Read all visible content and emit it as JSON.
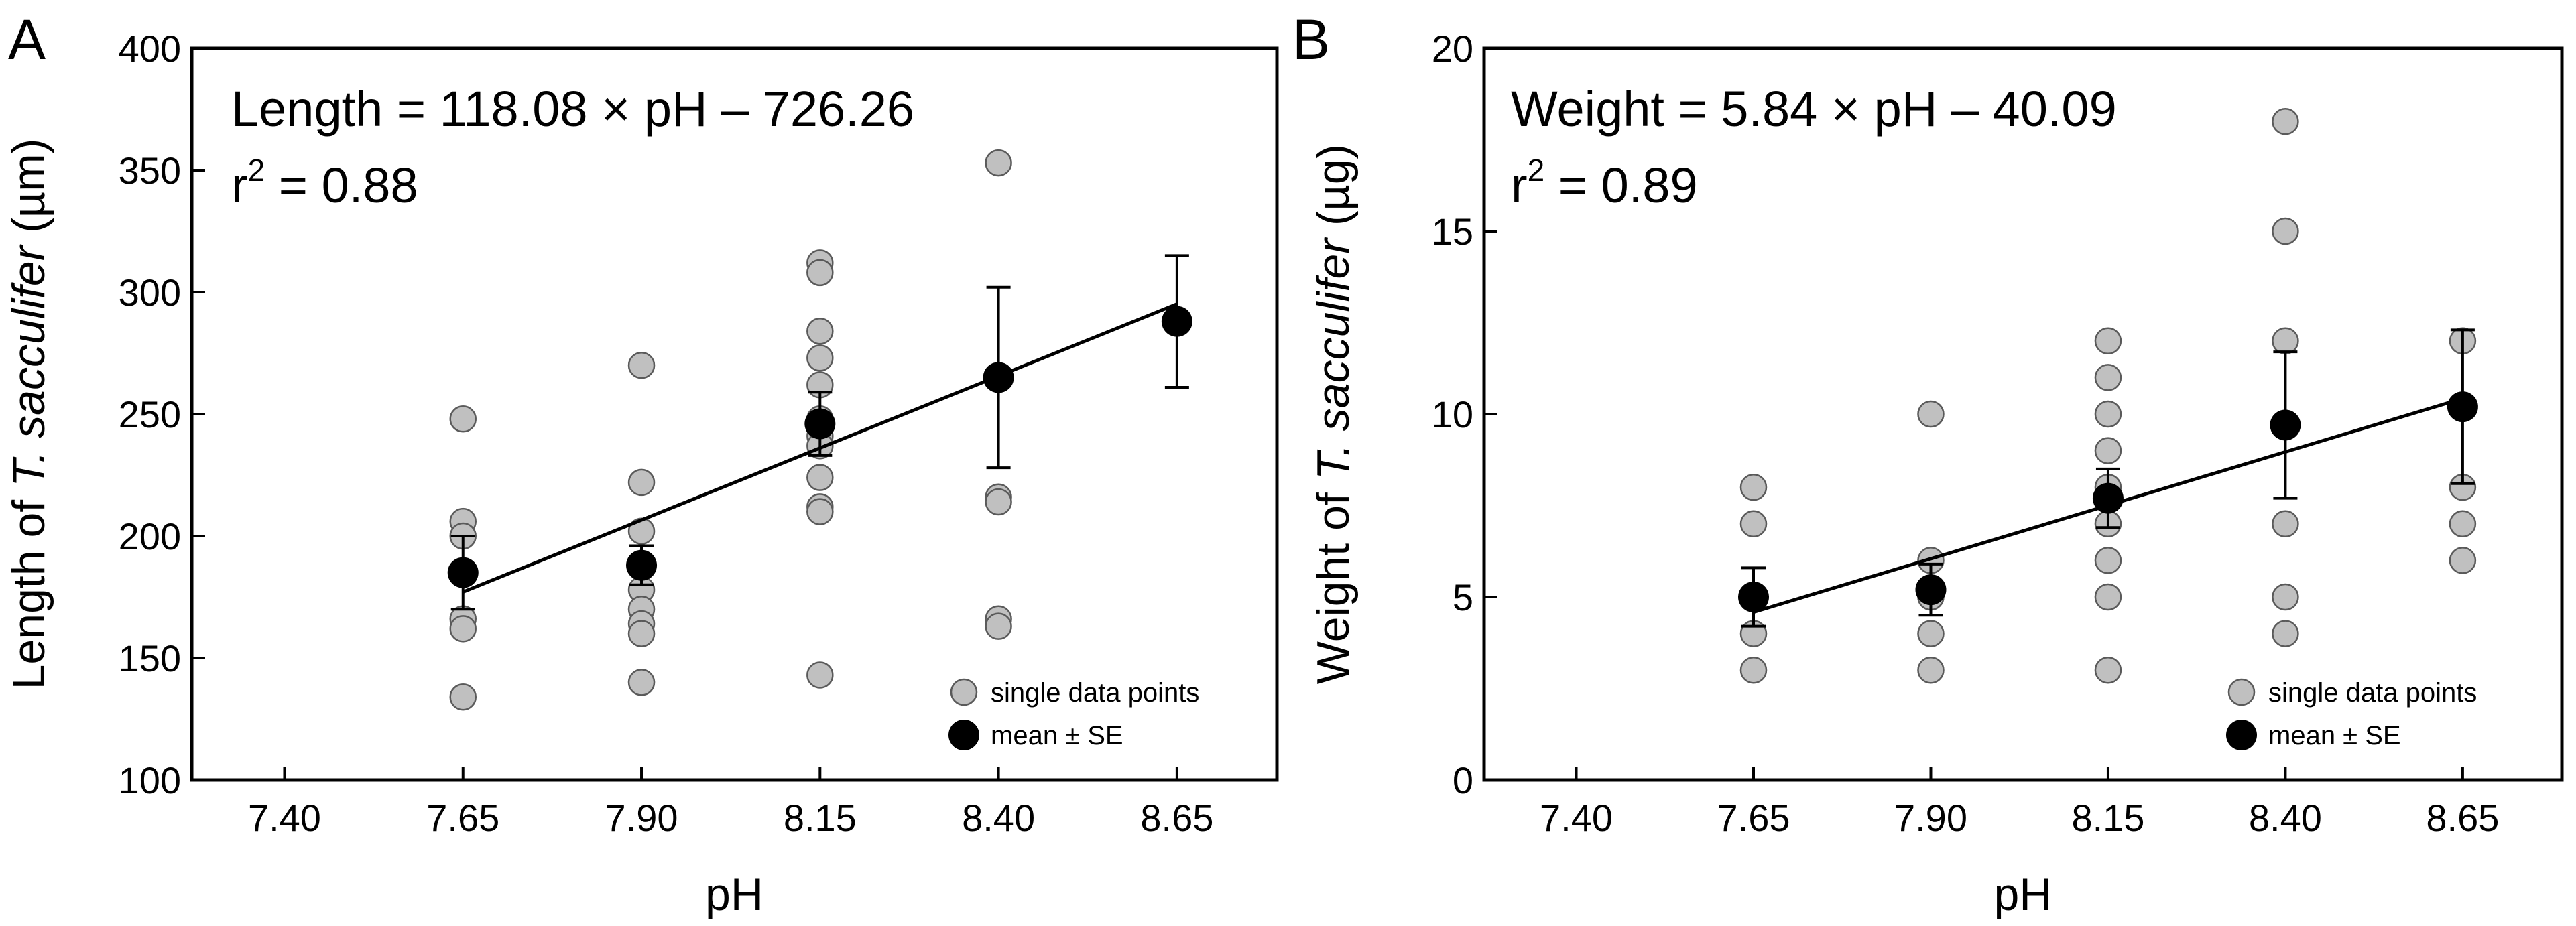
{
  "chart_data": [
    {
      "panel": "A",
      "type": "scatter",
      "xlabel": "pH",
      "ylabel": {
        "pre": "Length of ",
        "italic": "T. sacculifer",
        "post": " (µm)"
      },
      "xlim": [
        7.27,
        8.79
      ],
      "ylim": [
        100,
        400
      ],
      "x_ticks": [
        "7.40",
        "7.65",
        "7.90",
        "8.15",
        "8.40",
        "8.65"
      ],
      "y_ticks": [
        "100",
        "150",
        "200",
        "250",
        "300",
        "350",
        "400"
      ],
      "equation": "Length = 118.08 × pH – 726.26",
      "r2": {
        "pre": "r",
        "sup": "2",
        "post": " = 0.88"
      },
      "regression": {
        "slope": 118.08,
        "intercept": -726.26,
        "x_range": [
          7.65,
          8.65
        ]
      },
      "series": [
        {
          "name": "single data points",
          "color": "#c0c0c0",
          "points": [
            [
              7.65,
              248
            ],
            [
              7.65,
              206
            ],
            [
              7.65,
              200
            ],
            [
              7.65,
              166
            ],
            [
              7.65,
              162
            ],
            [
              7.65,
              134
            ],
            [
              7.9,
              270
            ],
            [
              7.9,
              222
            ],
            [
              7.9,
              202
            ],
            [
              7.9,
              178
            ],
            [
              7.9,
              170
            ],
            [
              7.9,
              164
            ],
            [
              7.9,
              160
            ],
            [
              7.9,
              140
            ],
            [
              8.15,
              312
            ],
            [
              8.15,
              308
            ],
            [
              8.15,
              284
            ],
            [
              8.15,
              273
            ],
            [
              8.15,
              262
            ],
            [
              8.15,
              248
            ],
            [
              8.15,
              246
            ],
            [
              8.15,
              241
            ],
            [
              8.15,
              237
            ],
            [
              8.15,
              224
            ],
            [
              8.15,
              212
            ],
            [
              8.15,
              210
            ],
            [
              8.15,
              143
            ],
            [
              8.4,
              353
            ],
            [
              8.4,
              216
            ],
            [
              8.4,
              214
            ],
            [
              8.4,
              166
            ],
            [
              8.4,
              163
            ],
            [
              8.65,
              288
            ]
          ]
        },
        {
          "name": "mean ± SE",
          "color": "#000000",
          "points": [
            {
              "x": 7.65,
              "y": 185,
              "se": 15
            },
            {
              "x": 7.9,
              "y": 188,
              "se": 8
            },
            {
              "x": 8.15,
              "y": 246,
              "se": 13
            },
            {
              "x": 8.4,
              "y": 265,
              "se": 37
            },
            {
              "x": 8.65,
              "y": 288,
              "se": 27
            }
          ]
        }
      ],
      "legend": {
        "position": "bottom-right",
        "entries": [
          "single data points",
          "mean ± SE"
        ]
      }
    },
    {
      "panel": "B",
      "type": "scatter",
      "xlabel": "pH",
      "ylabel": {
        "pre": "Weight of ",
        "italic": "T. sacculifer",
        "post": " (µg)"
      },
      "xlim": [
        7.27,
        8.79
      ],
      "ylim": [
        0,
        20
      ],
      "x_ticks": [
        "7.40",
        "7.65",
        "7.90",
        "8.15",
        "8.40",
        "8.65"
      ],
      "y_ticks": [
        "0",
        "5",
        "10",
        "15",
        "20"
      ],
      "equation": "Weight = 5.84 × pH – 40.09",
      "r2": {
        "pre": "r",
        "sup": "2",
        "post": " = 0.89"
      },
      "regression": {
        "slope": 5.84,
        "intercept": -40.09,
        "x_range": [
          7.65,
          8.65
        ]
      },
      "series": [
        {
          "name": "single data points",
          "color": "#c0c0c0",
          "points": [
            [
              7.65,
              8
            ],
            [
              7.65,
              7
            ],
            [
              7.65,
              5
            ],
            [
              7.65,
              4
            ],
            [
              7.65,
              3
            ],
            [
              7.9,
              10
            ],
            [
              7.9,
              6
            ],
            [
              7.9,
              5
            ],
            [
              7.9,
              4
            ],
            [
              7.9,
              3
            ],
            [
              8.15,
              12
            ],
            [
              8.15,
              11
            ],
            [
              8.15,
              10
            ],
            [
              8.15,
              9
            ],
            [
              8.15,
              8
            ],
            [
              8.15,
              7
            ],
            [
              8.15,
              6
            ],
            [
              8.15,
              5
            ],
            [
              8.15,
              3
            ],
            [
              8.4,
              18
            ],
            [
              8.4,
              15
            ],
            [
              8.4,
              12
            ],
            [
              8.4,
              7
            ],
            [
              8.4,
              5
            ],
            [
              8.4,
              4
            ],
            [
              8.65,
              12
            ],
            [
              8.65,
              8
            ],
            [
              8.65,
              7
            ],
            [
              8.65,
              6
            ]
          ]
        },
        {
          "name": "mean ± SE",
          "color": "#000000",
          "points": [
            {
              "x": 7.65,
              "y": 5.0,
              "se": 0.8
            },
            {
              "x": 7.9,
              "y": 5.2,
              "se": 0.7
            },
            {
              "x": 8.15,
              "y": 7.7,
              "se": 0.8
            },
            {
              "x": 8.4,
              "y": 9.7,
              "se": 2.0
            },
            {
              "x": 8.65,
              "y": 10.2,
              "se": 2.1
            }
          ]
        }
      ],
      "legend": {
        "position": "bottom-right",
        "entries": [
          "single data points",
          "mean ± SE"
        ]
      }
    }
  ]
}
